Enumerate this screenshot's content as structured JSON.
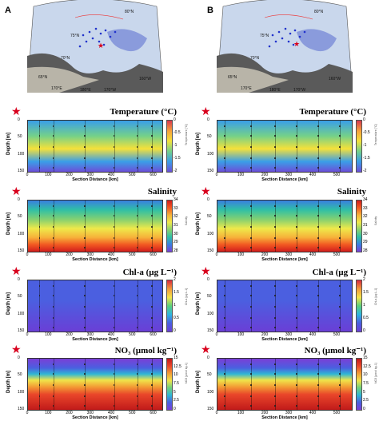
{
  "panels": [
    {
      "letter": "A",
      "map_labels": [
        "80°N",
        "75°N",
        "70°N",
        "65°N",
        "170°E",
        "180°E",
        "170°W",
        "160°W"
      ],
      "rows": [
        {
          "title": "Temperature (°C)",
          "colorbar_ticks": [
            "0",
            "-0.5",
            "-1",
            "-1.5",
            "-2"
          ],
          "colorbar_label": "Temperature [°C]",
          "colors": [
            "#d8374f",
            "#f6a13b",
            "#f5e13a",
            "#74d18a",
            "#3a9ee8",
            "#6c4fd8"
          ]
        },
        {
          "title": "Salinity",
          "colorbar_ticks": [
            "34",
            "33",
            "32",
            "31",
            "30",
            "29",
            "28"
          ],
          "colorbar_label": "Salinity",
          "colors": [
            "#d11d1d",
            "#f25a22",
            "#f6b23a",
            "#efe94a",
            "#8ad26e",
            "#2fbfa6",
            "#3a7fe0",
            "#7a3fd6"
          ]
        },
        {
          "title": "Chl-a (µg L⁻¹)",
          "colorbar_ticks": [
            "2",
            "1.5",
            "1",
            "0.5",
            "0"
          ],
          "colorbar_label": "Chl-a [µg L-1]",
          "colors": [
            "#d8293f",
            "#f29a3b",
            "#f4e44a",
            "#5bd07b",
            "#2eb5e0",
            "#4b5fe0",
            "#6a3fd6"
          ]
        },
        {
          "title": "NO₃ (µmol kg⁻¹)",
          "colorbar_ticks": [
            "15",
            "12.5",
            "10",
            "7.5",
            "5",
            "2.5",
            "0"
          ],
          "colorbar_label": "NO3 [µmol kg-1]",
          "colors": [
            "#c11a1a",
            "#e9462a",
            "#f39c34",
            "#f0e44a",
            "#6fd07b",
            "#2fb6d4",
            "#4b5fe0",
            "#7a3fd6"
          ]
        }
      ],
      "x_ticks": [
        "0",
        "100",
        "200",
        "300",
        "400",
        "500",
        "600"
      ],
      "stations_km": [
        55,
        120,
        270,
        410,
        520,
        590
      ]
    },
    {
      "letter": "B",
      "map_labels": [
        "80°N",
        "75°N",
        "70°N",
        "65°N",
        "170°E",
        "180°E",
        "170°W",
        "160°W"
      ],
      "rows": [
        {
          "title": "Temperature (°C)",
          "colorbar_ticks": [
            "0",
            "-0.5",
            "-1",
            "-1.5",
            "-2"
          ],
          "colorbar_label": "Temperature [°C]",
          "colors": [
            "#d8374f",
            "#f6a13b",
            "#f5e13a",
            "#74d18a",
            "#3a9ee8",
            "#6c4fd8"
          ]
        },
        {
          "title": "Salinity",
          "colorbar_ticks": [
            "34",
            "33",
            "32",
            "31",
            "30",
            "29",
            "28"
          ],
          "colorbar_label": "Salinity",
          "colors": [
            "#d11d1d",
            "#f25a22",
            "#f6b23a",
            "#efe94a",
            "#8ad26e",
            "#2fbfa6",
            "#3a7fe0",
            "#7a3fd6"
          ]
        },
        {
          "title": "Chl-a (µg L⁻¹)",
          "colorbar_ticks": [
            "2",
            "1.5",
            "1",
            "0.5",
            "0"
          ],
          "colorbar_label": "Chl-a [µg L-1]",
          "colors": [
            "#d8293f",
            "#f29a3b",
            "#f4e44a",
            "#5bd07b",
            "#2eb5e0",
            "#4b5fe0",
            "#6a3fd6"
          ]
        },
        {
          "title": "NO₃ (µmol kg⁻¹)",
          "colorbar_ticks": [
            "15",
            "12.5",
            "10",
            "7.5",
            "5",
            "2.5",
            "0"
          ],
          "colorbar_label": "NO3 [µmol kg-1]",
          "colors": [
            "#c11a1a",
            "#e9462a",
            "#f39c34",
            "#f0e44a",
            "#6fd07b",
            "#2fb6d4",
            "#4b5fe0",
            "#7a3fd6"
          ]
        }
      ],
      "x_ticks": [
        "0",
        "100",
        "200",
        "300",
        "400",
        "500"
      ],
      "stations_km": [
        30,
        140,
        240,
        330,
        420,
        510
      ]
    }
  ],
  "axes": {
    "y_label": "Depth [m]",
    "y_ticks": [
      "0",
      "50",
      "100",
      "150"
    ],
    "x_label": "Section Distance [km]"
  }
}
